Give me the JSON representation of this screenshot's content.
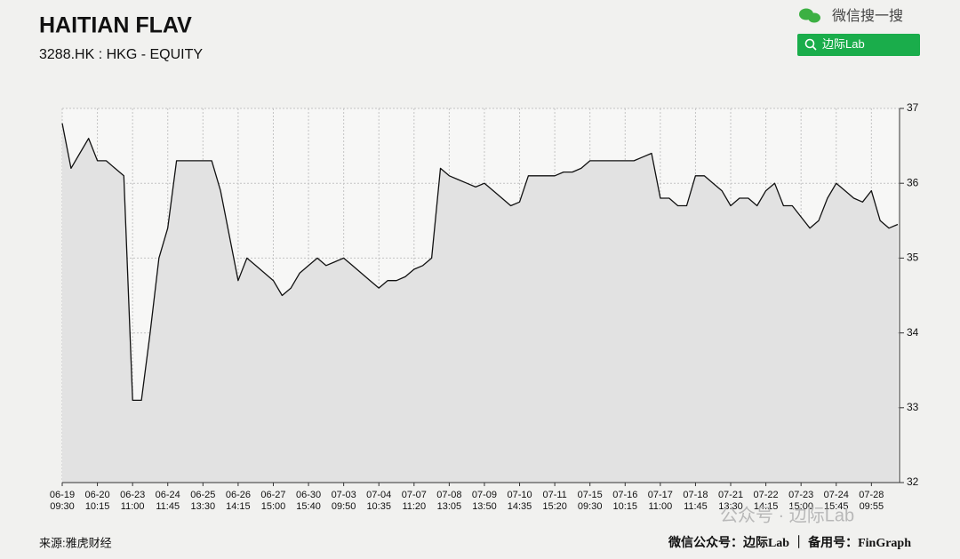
{
  "header": {
    "wechat_search": "微信搜一搜",
    "search_button": "边际Lab"
  },
  "watermark": "公众号 · 边际Lab",
  "footer": {
    "source": "来源:雅虎财经",
    "credit": "微信公众号：边际Lab ｜ 备用号：FinGraph"
  },
  "chart_data": {
    "type": "line",
    "title": "HAITIAN FLAV",
    "subtitle": "3288.HK : HKG - EQUITY",
    "color": "#111111",
    "fill_color": "#e2e2e2",
    "grid": true,
    "y_axis_side": "right",
    "xlim": [
      0,
      23.8
    ],
    "ylim": [
      32,
      37
    ],
    "yticks": [
      32,
      33,
      34,
      35,
      36,
      37
    ],
    "xticks": [
      {
        "value": 0,
        "label": "06-19 09:30"
      },
      {
        "value": 1,
        "label": "06-20 10:15"
      },
      {
        "value": 2,
        "label": "06-23 11:00"
      },
      {
        "value": 3,
        "label": "06-24 11:45"
      },
      {
        "value": 4,
        "label": "06-25 13:30"
      },
      {
        "value": 5,
        "label": "06-26 14:15"
      },
      {
        "value": 6,
        "label": "06-27 15:00"
      },
      {
        "value": 7,
        "label": "06-30 15:40"
      },
      {
        "value": 8,
        "label": "07-03 09:50"
      },
      {
        "value": 9,
        "label": "07-04 10:35"
      },
      {
        "value": 10,
        "label": "07-07 11:20"
      },
      {
        "value": 11,
        "label": "07-08 13:05"
      },
      {
        "value": 12,
        "label": "07-09 13:50"
      },
      {
        "value": 13,
        "label": "07-10 14:35"
      },
      {
        "value": 14,
        "label": "07-11 15:20"
      },
      {
        "value": 15,
        "label": "07-15 09:30"
      },
      {
        "value": 16,
        "label": "07-16 10:15"
      },
      {
        "value": 17,
        "label": "07-17 11:00"
      },
      {
        "value": 18,
        "label": "07-18 11:45"
      },
      {
        "value": 19,
        "label": "07-21 13:30"
      },
      {
        "value": 20,
        "label": "07-22 14:15"
      },
      {
        "value": 21,
        "label": "07-23 15:00"
      },
      {
        "value": 22,
        "label": "07-24 15:45"
      },
      {
        "value": 23,
        "label": "07-28 09:55"
      }
    ],
    "x": [
      0,
      0.25,
      0.5,
      0.75,
      1,
      1.25,
      1.5,
      1.75,
      2,
      2.25,
      2.5,
      2.75,
      3,
      3.25,
      3.5,
      3.75,
      4,
      4.25,
      4.5,
      4.75,
      5,
      5.25,
      5.5,
      5.75,
      6,
      6.25,
      6.5,
      6.75,
      7,
      7.25,
      7.5,
      7.75,
      8,
      8.25,
      8.5,
      8.75,
      9,
      9.25,
      9.5,
      9.75,
      10,
      10.25,
      10.5,
      10.75,
      11,
      11.25,
      11.5,
      11.75,
      12,
      12.25,
      12.5,
      12.75,
      13,
      13.25,
      13.5,
      13.75,
      14,
      14.25,
      14.5,
      14.75,
      15,
      15.25,
      15.5,
      15.75,
      16,
      16.25,
      16.5,
      16.75,
      17,
      17.25,
      17.5,
      17.75,
      18,
      18.25,
      18.5,
      18.75,
      19,
      19.25,
      19.5,
      19.75,
      20,
      20.25,
      20.5,
      20.75,
      21,
      21.25,
      21.5,
      21.75,
      22,
      22.25,
      22.5,
      22.75,
      23,
      23.25,
      23.5,
      23.75
    ],
    "values": [
      36.8,
      36.2,
      36.4,
      36.6,
      36.3,
      36.3,
      36.2,
      36.1,
      33.1,
      33.1,
      34.0,
      35.0,
      35.4,
      36.3,
      36.3,
      36.3,
      36.3,
      36.3,
      35.9,
      35.3,
      34.7,
      35.0,
      34.9,
      34.8,
      34.7,
      34.5,
      34.6,
      34.8,
      34.9,
      35.0,
      34.9,
      34.95,
      35.0,
      34.9,
      34.8,
      34.7,
      34.6,
      34.7,
      34.7,
      34.75,
      34.85,
      34.9,
      35.0,
      36.2,
      36.1,
      36.05,
      36.0,
      35.95,
      36.0,
      35.9,
      35.8,
      35.7,
      35.75,
      36.1,
      36.1,
      36.1,
      36.1,
      36.15,
      36.15,
      36.2,
      36.3,
      36.3,
      36.3,
      36.3,
      36.3,
      36.3,
      36.35,
      36.4,
      35.8,
      35.8,
      35.7,
      35.7,
      36.1,
      36.1,
      36.0,
      35.9,
      35.7,
      35.8,
      35.8,
      35.7,
      35.9,
      36.0,
      35.7,
      35.7,
      35.55,
      35.4,
      35.5,
      35.8,
      36.0,
      35.9,
      35.8,
      35.75,
      35.9,
      35.5,
      35.4,
      35.45
    ]
  }
}
